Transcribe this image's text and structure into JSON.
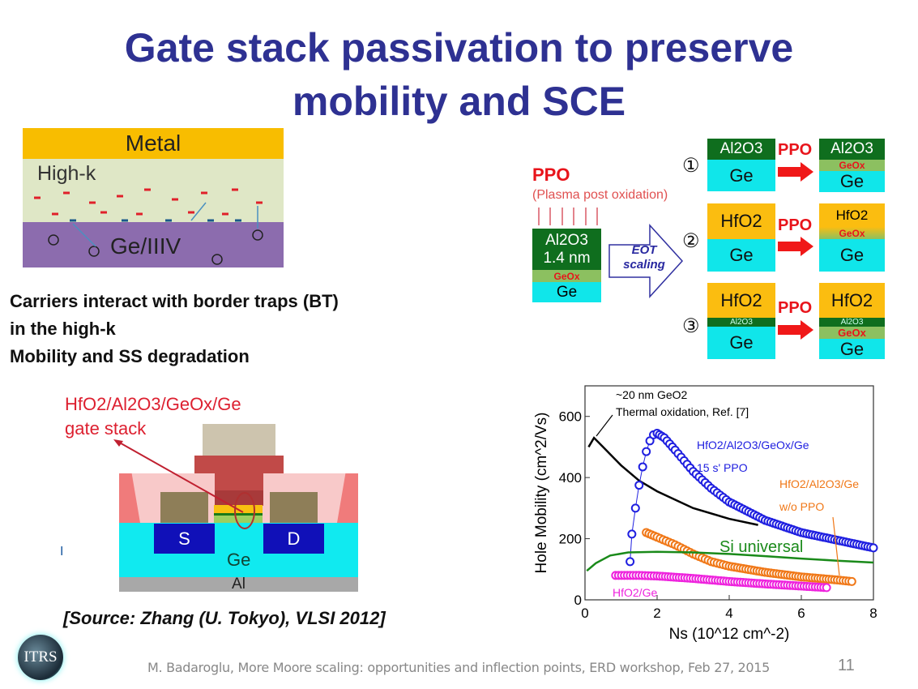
{
  "title": {
    "line1": "Gate stack passivation to preserve",
    "line2": "mobility and SCE"
  },
  "trap_diagram": {
    "metal": "Metal",
    "highk": "High-k",
    "substrate": "Ge/IIIV"
  },
  "body": {
    "line1": "Carriers interact with border traps (BT)",
    "line2": "in the high-k",
    "line3": "Mobility and SS degradation"
  },
  "ppo_diagram": {
    "ppo": "PPO",
    "ppo_full": "(Plasma post oxidation)",
    "stack_al2o3": "Al2O3",
    "stack_thickness": "1.4 nm",
    "geox": "GeOx",
    "ge": "Ge",
    "eot1": "EOT",
    "eot2": "scaling",
    "rows": [
      {
        "num": "①",
        "before": [
          "Al2O3",
          "Ge"
        ],
        "after": [
          "Al2O3",
          "GeOx",
          "Ge"
        ]
      },
      {
        "num": "②",
        "before": [
          "HfO2",
          "Ge"
        ],
        "after": [
          "HfO2",
          "GeOx",
          "Ge"
        ]
      },
      {
        "num": "③",
        "before": [
          "HfO2",
          "Al2O3",
          "Ge"
        ],
        "after": [
          "HfO2",
          "Al2O3",
          "GeOx",
          "Ge"
        ]
      }
    ]
  },
  "device": {
    "label1": "HfO2/Al2O3/GeOx/Ge",
    "label2": "gate stack",
    "source": "S",
    "drain": "D",
    "ge": "Ge",
    "al": "Al",
    "stray": "I"
  },
  "source_note": "[Source: Zhang (U. Tokyo), VLSI 2012]",
  "footer": {
    "text": "M. Badaroglu, More Moore scaling: opportunities and inflection points, ERD workshop, Feb 27, 2015",
    "page": "11",
    "logo": "ITRS"
  },
  "chart_data": {
    "type": "line",
    "xlabel": "Ns (10^12 cm^-2)",
    "ylabel": "Hole Mobility (cm^2/Vs)",
    "xlim": [
      0,
      8
    ],
    "ylim": [
      0,
      700
    ],
    "xticks": [
      "0",
      "2",
      "4",
      "6",
      "8"
    ],
    "yticks": [
      "0",
      "200",
      "400",
      "600"
    ],
    "annotations": {
      "thermal1": "~20 nm GeO2",
      "thermal2": "Thermal oxidation, Ref. [7]",
      "blue1": "HfO2/Al2O3/GeOx/Ge",
      "blue2": "15 s' PPO",
      "orange1": "HfO2/Al2O3/Ge",
      "orange2": "w/o PPO",
      "green": "Si universal",
      "magenta": "HfO2/Ge"
    },
    "series": [
      {
        "name": "~20 nm GeO2 Thermal oxidation",
        "color": "#000000",
        "marker": "none",
        "x": [
          0.1,
          0.25,
          0.5,
          1,
          1.5,
          2,
          3,
          4,
          4.8
        ],
        "y": [
          500,
          530,
          500,
          440,
          390,
          355,
          300,
          265,
          245
        ]
      },
      {
        "name": "HfO2/Al2O3/GeOx/Ge 15 s' PPO",
        "color": "#1f1fe0",
        "marker": "circle",
        "x": [
          1.25,
          1.3,
          1.4,
          1.5,
          1.6,
          1.7,
          1.8,
          1.9,
          2.0,
          2.2,
          2.5,
          3,
          3.5,
          4,
          5,
          6,
          7,
          8
        ],
        "y": [
          125,
          215,
          300,
          375,
          435,
          485,
          520,
          540,
          545,
          530,
          490,
          420,
          365,
          320,
          260,
          220,
          195,
          170
        ]
      },
      {
        "name": "HfO2/Al2O3/Ge w/o PPO",
        "color": "#f07818",
        "marker": "circle",
        "x": [
          1.7,
          2,
          2.5,
          3,
          3.5,
          4,
          5,
          6,
          7,
          7.4
        ],
        "y": [
          220,
          205,
          180,
          150,
          125,
          110,
          90,
          75,
          65,
          60
        ]
      },
      {
        "name": "HfO2/Ge",
        "color": "#ee22dd",
        "marker": "circle",
        "x": [
          0.85,
          1.5,
          2,
          3,
          4,
          5,
          6,
          6.7
        ],
        "y": [
          80,
          80,
          78,
          70,
          60,
          52,
          45,
          40
        ]
      },
      {
        "name": "Si universal",
        "color": "#1a8a1a",
        "marker": "none",
        "x": [
          0.05,
          0.3,
          0.7,
          1.2,
          2,
          3,
          4,
          5,
          6,
          7,
          8
        ],
        "y": [
          95,
          120,
          145,
          155,
          157,
          155,
          150,
          143,
          135,
          128,
          122
        ]
      }
    ]
  }
}
